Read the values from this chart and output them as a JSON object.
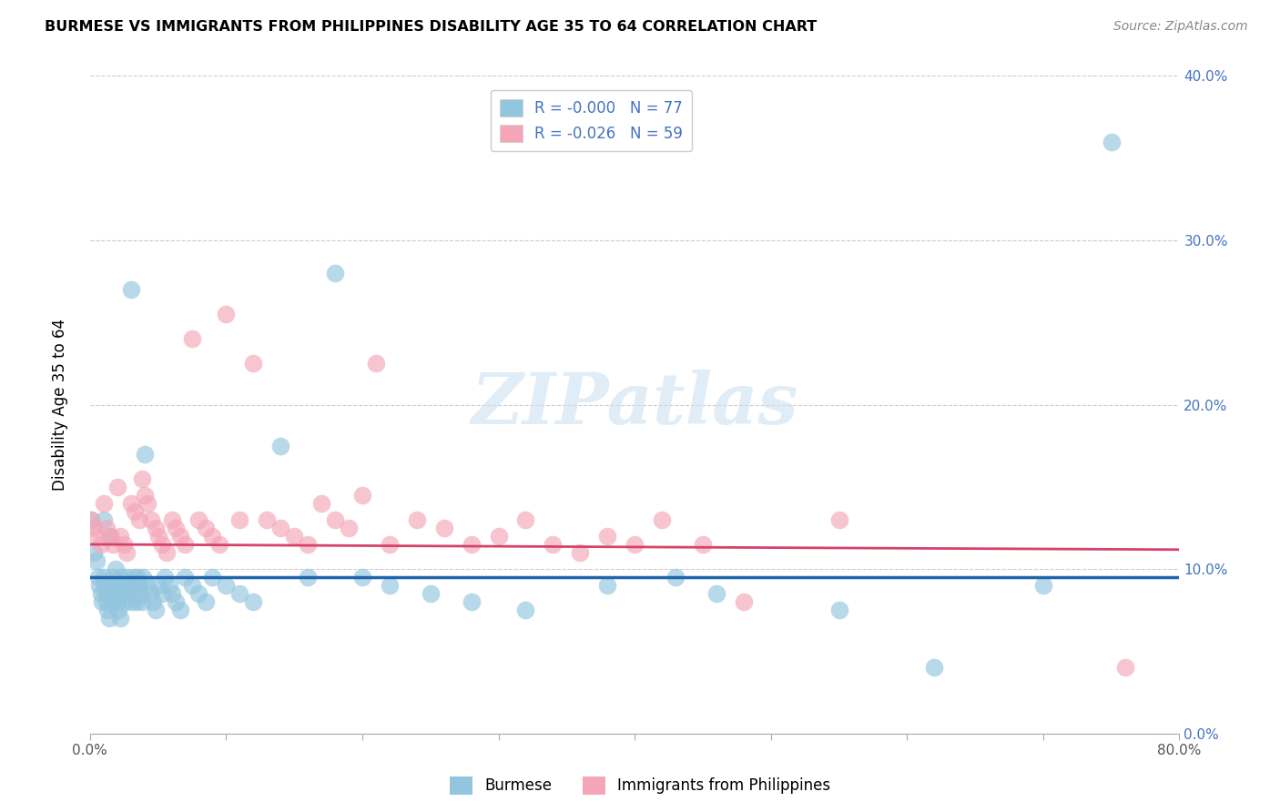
{
  "title": "BURMESE VS IMMIGRANTS FROM PHILIPPINES DISABILITY AGE 35 TO 64 CORRELATION CHART",
  "source": "Source: ZipAtlas.com",
  "ylabel": "Disability Age 35 to 64",
  "xlim": [
    0.0,
    0.8
  ],
  "ylim": [
    0.0,
    0.4
  ],
  "xticks": [
    0.0,
    0.1,
    0.2,
    0.3,
    0.4,
    0.5,
    0.6,
    0.7,
    0.8
  ],
  "xticklabels": [
    "0.0%",
    "",
    "",
    "",
    "",
    "",
    "",
    "",
    "80.0%"
  ],
  "yticks": [
    0.0,
    0.1,
    0.2,
    0.3,
    0.4
  ],
  "yticklabels_right": [
    "0.0%",
    "10.0%",
    "20.0%",
    "30.0%",
    "40.0%"
  ],
  "burmese_color": "#92c5de",
  "philippines_color": "#f4a6b8",
  "burmese_R": -0.0,
  "burmese_N": 77,
  "philippines_R": -0.026,
  "philippines_N": 59,
  "legend_label_burmese": "Burmese",
  "legend_label_philippines": "Immigrants from Philippines",
  "trend_color_burmese": "#2166ac",
  "trend_color_philippines": "#d6426a",
  "trend_intercept_burmese": 0.095,
  "trend_slope_burmese": 0.0,
  "trend_intercept_philippines": 0.115,
  "trend_slope_philippines": -0.004,
  "watermark": "ZIPatlas",
  "burmese_x": [
    0.001,
    0.003,
    0.005,
    0.006,
    0.007,
    0.008,
    0.009,
    0.01,
    0.01,
    0.011,
    0.012,
    0.012,
    0.013,
    0.014,
    0.015,
    0.015,
    0.016,
    0.017,
    0.017,
    0.018,
    0.019,
    0.02,
    0.02,
    0.021,
    0.022,
    0.023,
    0.024,
    0.025,
    0.026,
    0.027,
    0.028,
    0.029,
    0.03,
    0.031,
    0.032,
    0.033,
    0.034,
    0.035,
    0.036,
    0.037,
    0.038,
    0.039,
    0.04,
    0.042,
    0.044,
    0.046,
    0.048,
    0.05,
    0.053,
    0.055,
    0.058,
    0.06,
    0.063,
    0.066,
    0.07,
    0.075,
    0.08,
    0.085,
    0.09,
    0.1,
    0.11,
    0.12,
    0.14,
    0.16,
    0.18,
    0.2,
    0.22,
    0.25,
    0.28,
    0.32,
    0.38,
    0.43,
    0.46,
    0.55,
    0.62,
    0.7,
    0.75
  ],
  "burmese_y": [
    0.13,
    0.11,
    0.105,
    0.095,
    0.09,
    0.085,
    0.08,
    0.13,
    0.095,
    0.09,
    0.085,
    0.08,
    0.075,
    0.07,
    0.12,
    0.09,
    0.085,
    0.08,
    0.095,
    0.09,
    0.1,
    0.085,
    0.08,
    0.075,
    0.07,
    0.095,
    0.09,
    0.085,
    0.08,
    0.095,
    0.09,
    0.085,
    0.27,
    0.08,
    0.095,
    0.09,
    0.08,
    0.095,
    0.09,
    0.085,
    0.08,
    0.095,
    0.17,
    0.09,
    0.085,
    0.08,
    0.075,
    0.09,
    0.085,
    0.095,
    0.09,
    0.085,
    0.08,
    0.075,
    0.095,
    0.09,
    0.085,
    0.08,
    0.095,
    0.09,
    0.085,
    0.08,
    0.175,
    0.095,
    0.28,
    0.095,
    0.09,
    0.085,
    0.08,
    0.075,
    0.09,
    0.095,
    0.085,
    0.075,
    0.04,
    0.09,
    0.36
  ],
  "philippines_x": [
    0.001,
    0.003,
    0.005,
    0.008,
    0.01,
    0.012,
    0.015,
    0.017,
    0.02,
    0.022,
    0.025,
    0.027,
    0.03,
    0.033,
    0.036,
    0.038,
    0.04,
    0.042,
    0.045,
    0.048,
    0.05,
    0.053,
    0.056,
    0.06,
    0.063,
    0.066,
    0.07,
    0.075,
    0.08,
    0.085,
    0.09,
    0.095,
    0.1,
    0.11,
    0.12,
    0.13,
    0.14,
    0.15,
    0.16,
    0.17,
    0.18,
    0.19,
    0.2,
    0.21,
    0.22,
    0.24,
    0.26,
    0.28,
    0.3,
    0.32,
    0.34,
    0.36,
    0.38,
    0.4,
    0.42,
    0.45,
    0.48,
    0.55,
    0.76
  ],
  "philippines_y": [
    0.13,
    0.125,
    0.12,
    0.115,
    0.14,
    0.125,
    0.12,
    0.115,
    0.15,
    0.12,
    0.115,
    0.11,
    0.14,
    0.135,
    0.13,
    0.155,
    0.145,
    0.14,
    0.13,
    0.125,
    0.12,
    0.115,
    0.11,
    0.13,
    0.125,
    0.12,
    0.115,
    0.24,
    0.13,
    0.125,
    0.12,
    0.115,
    0.255,
    0.13,
    0.225,
    0.13,
    0.125,
    0.12,
    0.115,
    0.14,
    0.13,
    0.125,
    0.145,
    0.225,
    0.115,
    0.13,
    0.125,
    0.115,
    0.12,
    0.13,
    0.115,
    0.11,
    0.12,
    0.115,
    0.13,
    0.115,
    0.08,
    0.13,
    0.04
  ]
}
